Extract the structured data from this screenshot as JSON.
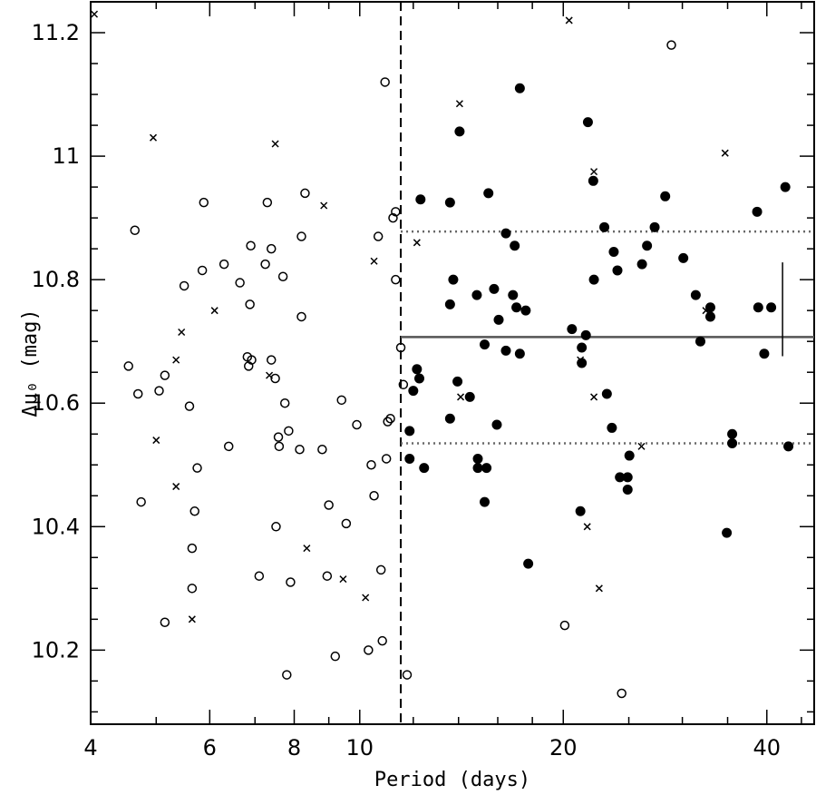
{
  "chart_data": {
    "type": "scatter",
    "title": "",
    "xlabel": "Period (days)",
    "ylabel": "Δμ₀ (mag)",
    "xscale": "log",
    "xlim": [
      4,
      47
    ],
    "ylim": [
      10.08,
      11.25
    ],
    "x_ticks": [
      4,
      6,
      8,
      10,
      20,
      40
    ],
    "x_tick_labels": [
      "4",
      "6",
      "8",
      "10",
      "20",
      "40"
    ],
    "y_ticks": [
      10.2,
      10.4,
      10.6,
      10.8,
      11.0,
      11.2
    ],
    "y_tick_labels": [
      "10.2",
      "10.4",
      "10.6",
      "10.8",
      "11",
      "11.2"
    ],
    "grid": false,
    "period_cut": 11.5,
    "mean_modulus": 10.707,
    "upper_dispersion": 10.878,
    "lower_dispersion": 10.535,
    "error_bar": {
      "x": 42.2,
      "y_low": 10.676,
      "y_high": 10.828
    },
    "series": [
      {
        "marker": "open-circle",
        "points": [
          [
            4.55,
            10.66
          ],
          [
            4.65,
            10.88
          ],
          [
            4.7,
            10.615
          ],
          [
            4.75,
            10.44
          ],
          [
            5.05,
            10.62
          ],
          [
            5.15,
            10.645
          ],
          [
            5.15,
            10.245
          ],
          [
            5.5,
            10.79
          ],
          [
            5.6,
            10.595
          ],
          [
            5.65,
            10.365
          ],
          [
            5.65,
            10.3
          ],
          [
            5.7,
            10.425
          ],
          [
            5.75,
            10.495
          ],
          [
            5.85,
            10.815
          ],
          [
            5.88,
            10.925
          ],
          [
            6.3,
            10.825
          ],
          [
            6.4,
            10.53
          ],
          [
            6.65,
            10.795
          ],
          [
            6.82,
            10.675
          ],
          [
            6.85,
            10.66
          ],
          [
            6.88,
            10.76
          ],
          [
            6.9,
            10.855
          ],
          [
            6.92,
            10.67
          ],
          [
            7.1,
            10.32
          ],
          [
            7.25,
            10.825
          ],
          [
            7.3,
            10.925
          ],
          [
            7.4,
            10.85
          ],
          [
            7.4,
            10.67
          ],
          [
            7.5,
            10.64
          ],
          [
            7.52,
            10.4
          ],
          [
            7.58,
            10.545
          ],
          [
            7.6,
            10.53
          ],
          [
            7.7,
            10.805
          ],
          [
            7.75,
            10.6
          ],
          [
            7.8,
            10.16
          ],
          [
            7.85,
            10.555
          ],
          [
            7.9,
            10.31
          ],
          [
            8.15,
            10.525
          ],
          [
            8.2,
            10.87
          ],
          [
            8.2,
            10.74
          ],
          [
            8.3,
            10.94
          ],
          [
            8.8,
            10.525
          ],
          [
            8.95,
            10.32
          ],
          [
            9.0,
            10.435
          ],
          [
            9.2,
            10.19
          ],
          [
            9.4,
            10.605
          ],
          [
            9.55,
            10.405
          ],
          [
            9.9,
            10.565
          ],
          [
            10.3,
            10.2
          ],
          [
            10.4,
            10.5
          ],
          [
            10.5,
            10.45
          ],
          [
            10.65,
            10.87
          ],
          [
            10.75,
            10.33
          ],
          [
            10.8,
            10.215
          ],
          [
            10.9,
            11.12
          ],
          [
            10.95,
            10.51
          ],
          [
            11.0,
            10.57
          ],
          [
            11.1,
            10.575
          ],
          [
            11.2,
            10.9
          ],
          [
            11.3,
            10.91
          ],
          [
            11.3,
            10.8
          ],
          [
            11.5,
            10.69
          ],
          [
            11.6,
            10.63
          ],
          [
            11.75,
            10.16
          ],
          [
            20.1,
            10.24
          ],
          [
            24.4,
            10.13
          ],
          [
            28.9,
            11.18
          ]
        ]
      },
      {
        "marker": "filled-circle",
        "points": [
          [
            11.85,
            10.555
          ],
          [
            11.85,
            10.51
          ],
          [
            12.0,
            10.62
          ],
          [
            12.15,
            10.655
          ],
          [
            12.25,
            10.64
          ],
          [
            12.3,
            10.93
          ],
          [
            12.45,
            10.495
          ],
          [
            13.6,
            10.925
          ],
          [
            13.6,
            10.76
          ],
          [
            13.6,
            10.575
          ],
          [
            13.75,
            10.8
          ],
          [
            13.95,
            10.635
          ],
          [
            14.05,
            11.04
          ],
          [
            14.55,
            10.61
          ],
          [
            14.9,
            10.775
          ],
          [
            14.95,
            10.51
          ],
          [
            14.95,
            10.495
          ],
          [
            15.3,
            10.695
          ],
          [
            15.3,
            10.44
          ],
          [
            15.4,
            10.495
          ],
          [
            15.5,
            10.94
          ],
          [
            15.8,
            10.785
          ],
          [
            15.95,
            10.565
          ],
          [
            16.05,
            10.735
          ],
          [
            16.45,
            10.875
          ],
          [
            16.45,
            10.685
          ],
          [
            16.85,
            10.775
          ],
          [
            16.95,
            10.855
          ],
          [
            17.05,
            10.755
          ],
          [
            17.25,
            11.11
          ],
          [
            17.25,
            10.68
          ],
          [
            17.6,
            10.75
          ],
          [
            17.75,
            10.34
          ],
          [
            20.6,
            10.72
          ],
          [
            21.2,
            10.425
          ],
          [
            21.3,
            10.69
          ],
          [
            21.3,
            10.665
          ],
          [
            21.6,
            10.71
          ],
          [
            21.75,
            11.055
          ],
          [
            22.15,
            10.96
          ],
          [
            22.2,
            10.8
          ],
          [
            23.0,
            10.885
          ],
          [
            23.2,
            10.615
          ],
          [
            23.6,
            10.56
          ],
          [
            23.75,
            10.845
          ],
          [
            24.05,
            10.815
          ],
          [
            24.25,
            10.48
          ],
          [
            24.9,
            10.48
          ],
          [
            24.9,
            10.46
          ],
          [
            25.05,
            10.515
          ],
          [
            26.15,
            10.825
          ],
          [
            26.6,
            10.855
          ],
          [
            27.3,
            10.885
          ],
          [
            28.3,
            10.935
          ],
          [
            30.1,
            10.835
          ],
          [
            31.4,
            10.775
          ],
          [
            31.9,
            10.7
          ],
          [
            33.0,
            10.755
          ],
          [
            33.0,
            10.74
          ],
          [
            35.55,
            10.55
          ],
          [
            35.55,
            10.535
          ],
          [
            38.7,
            10.91
          ],
          [
            38.85,
            10.755
          ],
          [
            39.65,
            10.68
          ],
          [
            40.6,
            10.755
          ],
          [
            42.6,
            10.95
          ],
          [
            43.05,
            10.53
          ],
          [
            34.9,
            10.39
          ]
        ]
      },
      {
        "marker": "cross",
        "points": [
          [
            4.05,
            11.23
          ],
          [
            4.95,
            11.03
          ],
          [
            5.0,
            10.54
          ],
          [
            5.35,
            10.465
          ],
          [
            5.35,
            10.67
          ],
          [
            5.45,
            10.715
          ],
          [
            5.65,
            10.25
          ],
          [
            6.1,
            10.75
          ],
          [
            7.35,
            10.645
          ],
          [
            7.5,
            11.02
          ],
          [
            8.35,
            10.365
          ],
          [
            8.85,
            10.92
          ],
          [
            9.45,
            10.315
          ],
          [
            10.2,
            10.285
          ],
          [
            10.5,
            10.83
          ],
          [
            12.15,
            10.86
          ],
          [
            14.05,
            11.085
          ],
          [
            14.1,
            10.61
          ],
          [
            20.4,
            11.22
          ],
          [
            21.2,
            10.67
          ],
          [
            21.7,
            10.4
          ],
          [
            22.2,
            10.975
          ],
          [
            22.2,
            10.61
          ],
          [
            22.6,
            10.3
          ],
          [
            26.1,
            10.53
          ],
          [
            32.5,
            10.75
          ],
          [
            34.7,
            11.005
          ]
        ]
      }
    ]
  }
}
